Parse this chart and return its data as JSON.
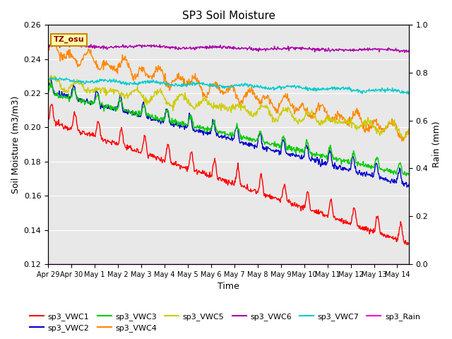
{
  "title": "SP3 Soil Moisture",
  "xlabel": "Time",
  "ylabel_left": "Soil Moisture (m3/m3)",
  "ylabel_right": "Rain (mm)",
  "ylim_left": [
    0.12,
    0.26
  ],
  "ylim_right": [
    0.0,
    1.0
  ],
  "background_color": "#e8e8e8",
  "annotation_text": "TZ_osu",
  "annotation_facecolor": "#ffffaa",
  "annotation_edgecolor": "#cc8800",
  "annotation_textcolor": "#8b0000",
  "xtick_labels": [
    "Apr 29",
    "Apr 30",
    "May 1",
    "May 2",
    "May 3",
    "May 4",
    "May 5",
    "May 6",
    "May 7",
    "May 8",
    "May 9",
    "May 10",
    "May 11",
    "May 12",
    "May 13",
    "May 14"
  ],
  "yticks_left": [
    0.12,
    0.14,
    0.16,
    0.18,
    0.2,
    0.22,
    0.24,
    0.26
  ],
  "yticks_right": [
    0.0,
    0.2,
    0.4,
    0.6,
    0.8,
    1.0
  ],
  "colors": {
    "sp3_VWC1": "#ff0000",
    "sp3_VWC2": "#0000cc",
    "sp3_VWC3": "#00cc00",
    "sp3_VWC4": "#ff8800",
    "sp3_VWC5": "#cccc00",
    "sp3_VWC6": "#aa00aa",
    "sp3_VWC7": "#00cccc",
    "sp3_Rain": "#ff00cc"
  },
  "linewidth": 1.0,
  "figsize": [
    6.4,
    4.8
  ],
  "dpi": 100
}
